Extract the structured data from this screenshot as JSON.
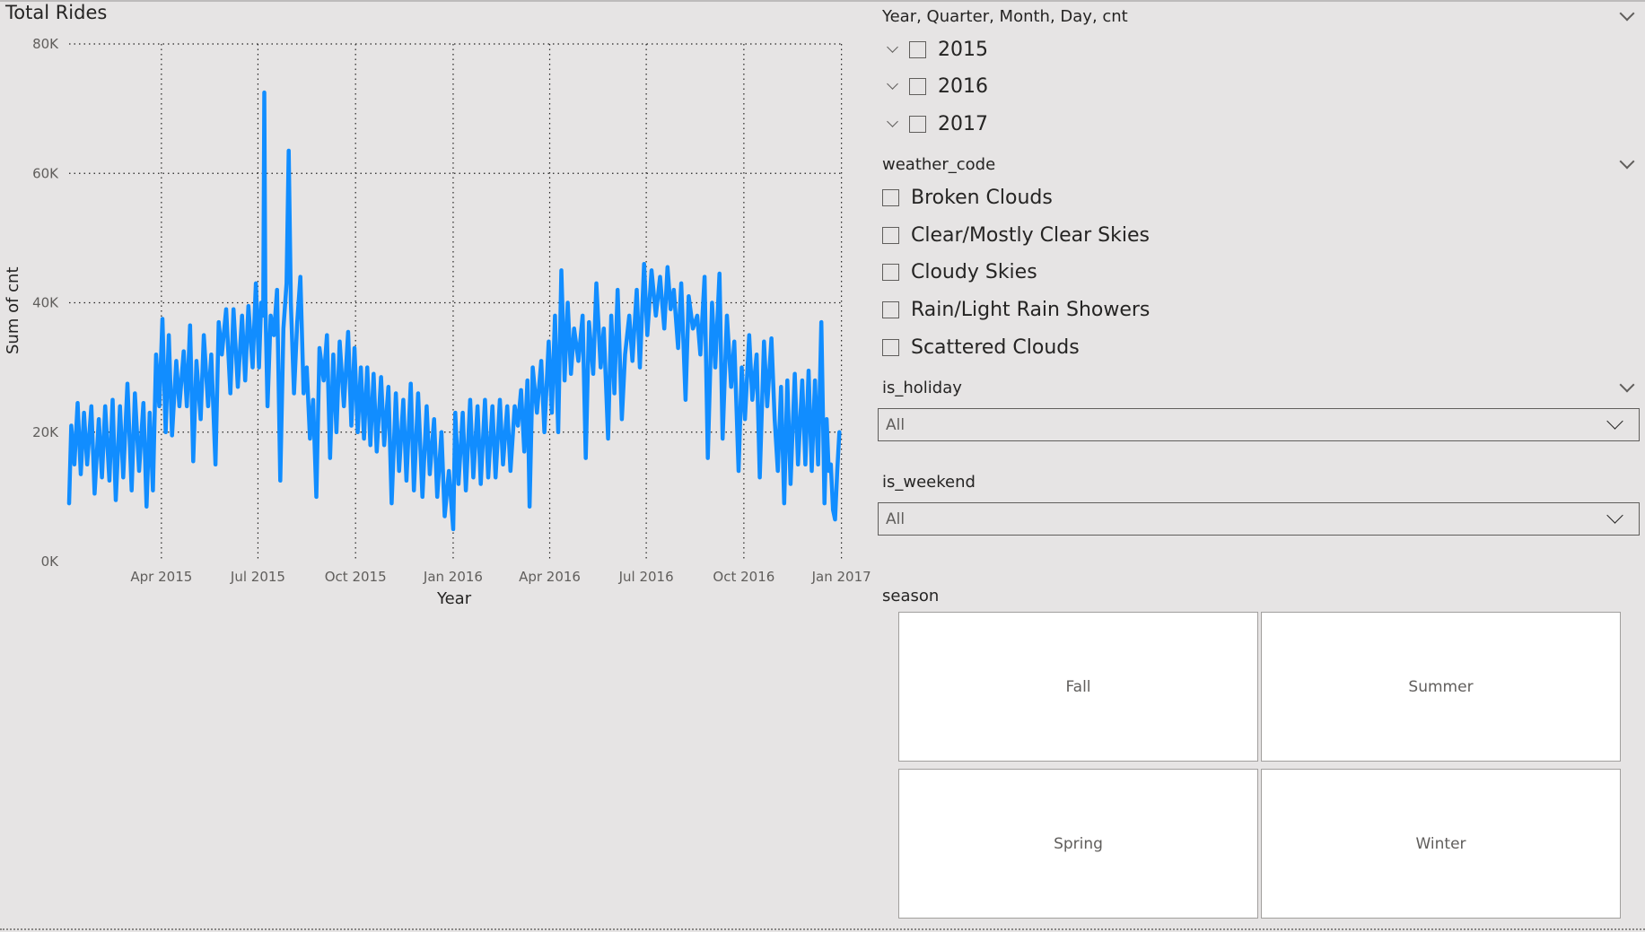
{
  "chart": {
    "title": "Total Rides",
    "ylabel": "Sum of cnt",
    "xlabel": "Year"
  },
  "chart_data": {
    "type": "line",
    "title": "Total Rides",
    "xlabel": "Year",
    "ylabel": "Sum of cnt",
    "ylim": [
      0,
      80000
    ],
    "xlim": [
      "2015-01-04",
      "2017-01-03"
    ],
    "yticks": [
      "0K",
      "20K",
      "40K",
      "60K",
      "80K"
    ],
    "xticks": [
      "Apr 2015",
      "Jul 2015",
      "Oct 2015",
      "Jan 2016",
      "Apr 2016",
      "Jul 2016",
      "Oct 2016",
      "Jan 2017"
    ],
    "xtick_dates": [
      "2015-04-01",
      "2015-07-01",
      "2015-10-01",
      "2016-01-01",
      "2016-04-01",
      "2016-07-01",
      "2016-10-01",
      "2017-01-01"
    ],
    "grid": true,
    "line_color": "#118DFF",
    "series": [
      {
        "points": [
          [
            "2015-01-04",
            9000
          ],
          [
            "2015-01-06",
            21000
          ],
          [
            "2015-01-09",
            15000
          ],
          [
            "2015-01-12",
            24500
          ],
          [
            "2015-01-15",
            13500
          ],
          [
            "2015-01-18",
            23000
          ],
          [
            "2015-01-21",
            15000
          ],
          [
            "2015-01-25",
            24000
          ],
          [
            "2015-01-28",
            10500
          ],
          [
            "2015-02-01",
            22000
          ],
          [
            "2015-02-04",
            13000
          ],
          [
            "2015-02-07",
            24000
          ],
          [
            "2015-02-11",
            12500
          ],
          [
            "2015-02-14",
            25000
          ],
          [
            "2015-02-17",
            9500
          ],
          [
            "2015-02-21",
            24000
          ],
          [
            "2015-02-24",
            13000
          ],
          [
            "2015-02-28",
            27500
          ],
          [
            "2015-03-04",
            11000
          ],
          [
            "2015-03-07",
            26000
          ],
          [
            "2015-03-11",
            14000
          ],
          [
            "2015-03-15",
            24500
          ],
          [
            "2015-03-18",
            8500
          ],
          [
            "2015-03-21",
            23000
          ],
          [
            "2015-03-24",
            11000
          ],
          [
            "2015-03-27",
            32000
          ],
          [
            "2015-03-30",
            24000
          ],
          [
            "2015-04-02",
            37500
          ],
          [
            "2015-04-05",
            20000
          ],
          [
            "2015-04-08",
            35000
          ],
          [
            "2015-04-11",
            19500
          ],
          [
            "2015-04-15",
            31000
          ],
          [
            "2015-04-18",
            24000
          ],
          [
            "2015-04-22",
            32500
          ],
          [
            "2015-04-25",
            24000
          ],
          [
            "2015-04-28",
            36500
          ],
          [
            "2015-05-01",
            15500
          ],
          [
            "2015-05-04",
            31000
          ],
          [
            "2015-05-08",
            22000
          ],
          [
            "2015-05-11",
            35000
          ],
          [
            "2015-05-15",
            24000
          ],
          [
            "2015-05-18",
            32000
          ],
          [
            "2015-05-22",
            15000
          ],
          [
            "2015-05-25",
            37000
          ],
          [
            "2015-05-28",
            32000
          ],
          [
            "2015-06-01",
            39000
          ],
          [
            "2015-06-05",
            26000
          ],
          [
            "2015-06-08",
            39000
          ],
          [
            "2015-06-12",
            27000
          ],
          [
            "2015-06-16",
            38000
          ],
          [
            "2015-06-19",
            28000
          ],
          [
            "2015-06-22",
            39500
          ],
          [
            "2015-06-26",
            30000
          ],
          [
            "2015-06-29",
            43000
          ],
          [
            "2015-07-02",
            30000
          ],
          [
            "2015-07-04",
            40000
          ],
          [
            "2015-07-06",
            38000
          ],
          [
            "2015-07-07",
            72500
          ],
          [
            "2015-07-08",
            40000
          ],
          [
            "2015-07-10",
            24000
          ],
          [
            "2015-07-13",
            38000
          ],
          [
            "2015-07-16",
            35000
          ],
          [
            "2015-07-19",
            42000
          ],
          [
            "2015-07-22",
            12500
          ],
          [
            "2015-07-25",
            36000
          ],
          [
            "2015-07-28",
            43000
          ],
          [
            "2015-07-30",
            63500
          ],
          [
            "2015-08-01",
            40000
          ],
          [
            "2015-08-04",
            26000
          ],
          [
            "2015-08-07",
            37000
          ],
          [
            "2015-08-10",
            44000
          ],
          [
            "2015-08-13",
            26000
          ],
          [
            "2015-08-16",
            30000
          ],
          [
            "2015-08-19",
            19000
          ],
          [
            "2015-08-22",
            25000
          ],
          [
            "2015-08-25",
            10000
          ],
          [
            "2015-08-28",
            33000
          ],
          [
            "2015-09-01",
            28000
          ],
          [
            "2015-09-04",
            35000
          ],
          [
            "2015-09-07",
            16000
          ],
          [
            "2015-09-10",
            32000
          ],
          [
            "2015-09-13",
            20000
          ],
          [
            "2015-09-16",
            34000
          ],
          [
            "2015-09-20",
            24000
          ],
          [
            "2015-09-24",
            35500
          ],
          [
            "2015-09-27",
            21000
          ],
          [
            "2015-09-30",
            33000
          ],
          [
            "2015-10-03",
            20000
          ],
          [
            "2015-10-06",
            30000
          ],
          [
            "2015-10-09",
            19000
          ],
          [
            "2015-10-12",
            30000
          ],
          [
            "2015-10-15",
            18000
          ],
          [
            "2015-10-18",
            29000
          ],
          [
            "2015-10-21",
            17000
          ],
          [
            "2015-10-25",
            28500
          ],
          [
            "2015-10-28",
            18000
          ],
          [
            "2015-11-01",
            27000
          ],
          [
            "2015-11-04",
            9000
          ],
          [
            "2015-11-08",
            26000
          ],
          [
            "2015-11-11",
            14000
          ],
          [
            "2015-11-15",
            25000
          ],
          [
            "2015-11-18",
            12500
          ],
          [
            "2015-11-22",
            27500
          ],
          [
            "2015-11-25",
            11000
          ],
          [
            "2015-11-29",
            26000
          ],
          [
            "2015-12-03",
            10000
          ],
          [
            "2015-12-07",
            24000
          ],
          [
            "2015-12-10",
            13500
          ],
          [
            "2015-12-14",
            22000
          ],
          [
            "2015-12-17",
            10000
          ],
          [
            "2015-12-21",
            20000
          ],
          [
            "2015-12-24",
            7000
          ],
          [
            "2015-12-28",
            14000
          ],
          [
            "2016-01-01",
            5000
          ],
          [
            "2016-01-03",
            23000
          ],
          [
            "2016-01-06",
            12000
          ],
          [
            "2016-01-10",
            23000
          ],
          [
            "2016-01-13",
            11000
          ],
          [
            "2016-01-17",
            25000
          ],
          [
            "2016-01-20",
            13000
          ],
          [
            "2016-01-24",
            24000
          ],
          [
            "2016-01-27",
            12000
          ],
          [
            "2016-01-31",
            25000
          ],
          [
            "2016-02-03",
            13000
          ],
          [
            "2016-02-07",
            24000
          ],
          [
            "2016-02-10",
            13000
          ],
          [
            "2016-02-14",
            25000
          ],
          [
            "2016-02-17",
            15000
          ],
          [
            "2016-02-21",
            24000
          ],
          [
            "2016-02-24",
            14000
          ],
          [
            "2016-02-28",
            24000
          ],
          [
            "2016-03-02",
            21000
          ],
          [
            "2016-03-05",
            26500
          ],
          [
            "2016-03-08",
            17000
          ],
          [
            "2016-03-11",
            28000
          ],
          [
            "2016-03-13",
            8500
          ],
          [
            "2016-03-16",
            30000
          ],
          [
            "2016-03-20",
            23000
          ],
          [
            "2016-03-24",
            31000
          ],
          [
            "2016-03-27",
            20000
          ],
          [
            "2016-03-31",
            34000
          ],
          [
            "2016-04-03",
            23000
          ],
          [
            "2016-04-06",
            38000
          ],
          [
            "2016-04-09",
            20000
          ],
          [
            "2016-04-12",
            45000
          ],
          [
            "2016-04-15",
            28000
          ],
          [
            "2016-04-18",
            40000
          ],
          [
            "2016-04-21",
            29000
          ],
          [
            "2016-04-24",
            36000
          ],
          [
            "2016-04-28",
            31000
          ],
          [
            "2016-05-02",
            38000
          ],
          [
            "2016-05-05",
            16000
          ],
          [
            "2016-05-08",
            37000
          ],
          [
            "2016-05-12",
            29000
          ],
          [
            "2016-05-15",
            43000
          ],
          [
            "2016-05-19",
            30000
          ],
          [
            "2016-05-22",
            36000
          ],
          [
            "2016-05-26",
            19000
          ],
          [
            "2016-05-29",
            38000
          ],
          [
            "2016-06-01",
            26000
          ],
          [
            "2016-06-04",
            42000
          ],
          [
            "2016-06-08",
            22000
          ],
          [
            "2016-06-11",
            32000
          ],
          [
            "2016-06-15",
            38000
          ],
          [
            "2016-06-18",
            31000
          ],
          [
            "2016-06-22",
            42000
          ],
          [
            "2016-06-25",
            30000
          ],
          [
            "2016-06-29",
            46000
          ],
          [
            "2016-07-02",
            35000
          ],
          [
            "2016-07-06",
            45000
          ],
          [
            "2016-07-10",
            38000
          ],
          [
            "2016-07-14",
            44000
          ],
          [
            "2016-07-18",
            36000
          ],
          [
            "2016-07-21",
            45500
          ],
          [
            "2016-07-24",
            39000
          ],
          [
            "2016-07-27",
            42000
          ],
          [
            "2016-07-31",
            33000
          ],
          [
            "2016-08-03",
            43000
          ],
          [
            "2016-08-07",
            25000
          ],
          [
            "2016-08-10",
            41000
          ],
          [
            "2016-08-14",
            36000
          ],
          [
            "2016-08-18",
            38000
          ],
          [
            "2016-08-21",
            32000
          ],
          [
            "2016-08-25",
            44000
          ],
          [
            "2016-08-28",
            16000
          ],
          [
            "2016-09-01",
            40000
          ],
          [
            "2016-09-04",
            30000
          ],
          [
            "2016-09-08",
            44500
          ],
          [
            "2016-09-11",
            19000
          ],
          [
            "2016-09-15",
            38000
          ],
          [
            "2016-09-19",
            27000
          ],
          [
            "2016-09-22",
            34000
          ],
          [
            "2016-09-26",
            14000
          ],
          [
            "2016-09-29",
            30000
          ],
          [
            "2016-10-02",
            22000
          ],
          [
            "2016-10-06",
            35000
          ],
          [
            "2016-10-09",
            25000
          ],
          [
            "2016-10-13",
            32000
          ],
          [
            "2016-10-16",
            13000
          ],
          [
            "2016-10-20",
            34000
          ],
          [
            "2016-10-23",
            24000
          ],
          [
            "2016-10-27",
            34500
          ],
          [
            "2016-10-30",
            22000
          ],
          [
            "2016-11-02",
            14000
          ],
          [
            "2016-11-05",
            27000
          ],
          [
            "2016-11-08",
            9000
          ],
          [
            "2016-11-11",
            28000
          ],
          [
            "2016-11-14",
            12000
          ],
          [
            "2016-11-18",
            29000
          ],
          [
            "2016-11-21",
            15000
          ],
          [
            "2016-11-25",
            28000
          ],
          [
            "2016-11-28",
            15000
          ],
          [
            "2016-12-01",
            29500
          ],
          [
            "2016-12-04",
            14000
          ],
          [
            "2016-12-07",
            28000
          ],
          [
            "2016-12-10",
            15000
          ],
          [
            "2016-12-13",
            37000
          ],
          [
            "2016-12-16",
            9000
          ],
          [
            "2016-12-18",
            22000
          ],
          [
            "2016-12-20",
            14000
          ],
          [
            "2016-12-22",
            15000
          ],
          [
            "2016-12-24",
            8000
          ],
          [
            "2016-12-26",
            6500
          ],
          [
            "2016-12-28",
            14000
          ],
          [
            "2016-12-30",
            20000
          ]
        ]
      }
    ]
  },
  "slicer_date": {
    "title": "Year, Quarter, Month, Day, cnt",
    "items": [
      {
        "label": "2015"
      },
      {
        "label": "2016"
      },
      {
        "label": "2017"
      }
    ]
  },
  "slicer_weather": {
    "title": "weather_code",
    "items": [
      {
        "label": "Broken Clouds"
      },
      {
        "label": "Clear/Mostly Clear Skies"
      },
      {
        "label": "Cloudy Skies"
      },
      {
        "label": "Rain/Light Rain Showers"
      },
      {
        "label": "Scattered Clouds"
      }
    ]
  },
  "slicer_holiday": {
    "title": "is_holiday",
    "value": "All"
  },
  "slicer_weekend": {
    "title": "is_weekend",
    "value": "All"
  },
  "slicer_season": {
    "title": "season",
    "tiles": [
      {
        "label": "Fall"
      },
      {
        "label": "Summer"
      },
      {
        "label": "Spring"
      },
      {
        "label": "Winter"
      }
    ]
  }
}
